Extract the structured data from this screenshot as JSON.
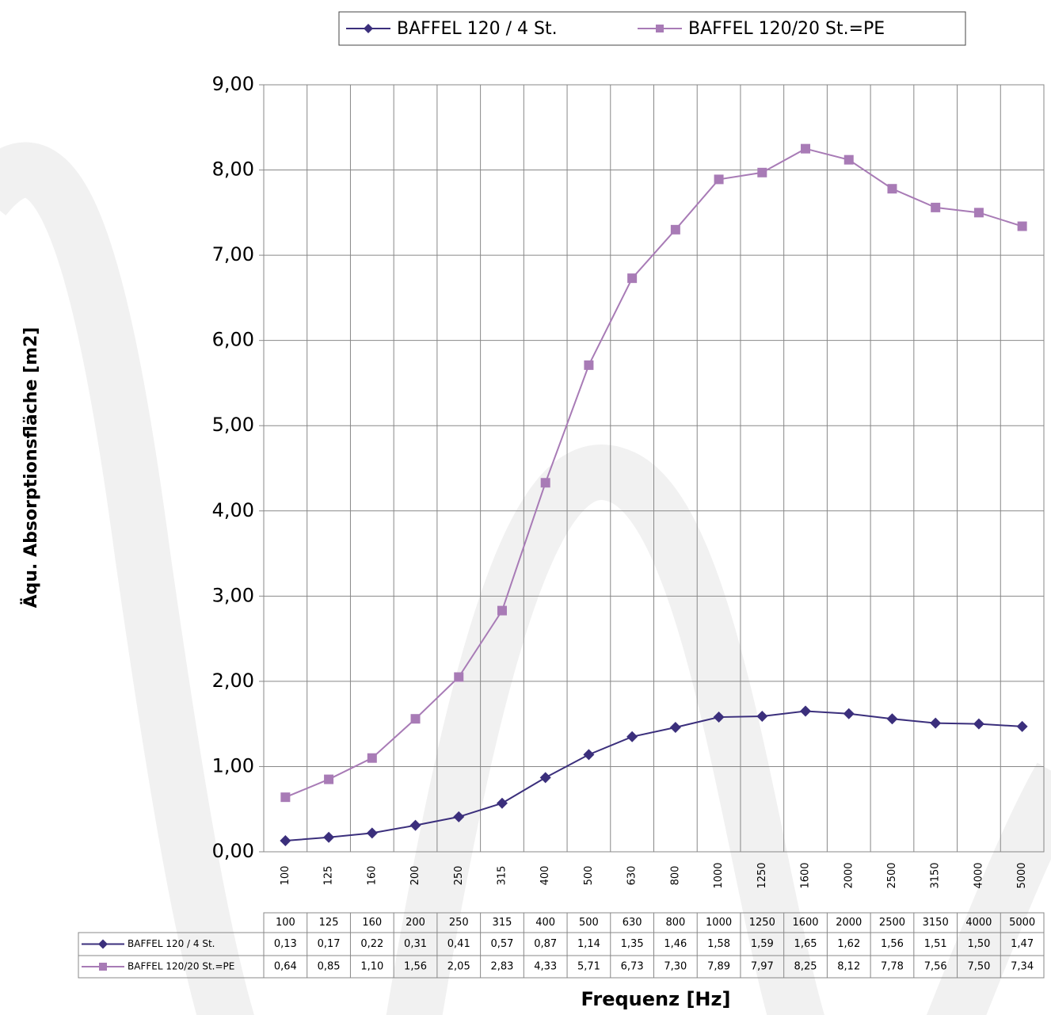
{
  "chart_data": {
    "type": "line",
    "x_label": "Frequenz [Hz]",
    "y_label": "Äqu. Absorptionsfläche [m2]",
    "categories": [
      "100",
      "125",
      "160",
      "200",
      "250",
      "315",
      "400",
      "500",
      "630",
      "800",
      "1000",
      "1250",
      "1600",
      "2000",
      "2500",
      "3150",
      "4000",
      "5000"
    ],
    "series": [
      {
        "name": "BAFFEL 120 / 4 St.",
        "color": "#3b2f7c",
        "marker": "diamond",
        "values": [
          0.13,
          0.17,
          0.22,
          0.31,
          0.41,
          0.57,
          0.87,
          1.14,
          1.35,
          1.46,
          1.58,
          1.59,
          1.65,
          1.62,
          1.56,
          1.51,
          1.5,
          1.47
        ],
        "value_labels": [
          "0,13",
          "0,17",
          "0,22",
          "0,31",
          "0,41",
          "0,57",
          "0,87",
          "1,14",
          "1,35",
          "1,46",
          "1,58",
          "1,59",
          "1,65",
          "1,62",
          "1,56",
          "1,51",
          "1,50",
          "1,47"
        ]
      },
      {
        "name": "BAFFEL 120/20 St.=PE",
        "color": "#a87bb6",
        "marker": "square",
        "values": [
          0.64,
          0.85,
          1.1,
          1.56,
          2.05,
          2.83,
          4.33,
          5.71,
          6.73,
          7.3,
          7.89,
          7.97,
          8.25,
          8.12,
          7.78,
          7.56,
          7.5,
          7.34
        ],
        "value_labels": [
          "0,64",
          "0,85",
          "1,10",
          "1,56",
          "2,05",
          "2,83",
          "4,33",
          "5,71",
          "6,73",
          "7,30",
          "7,89",
          "7,97",
          "8,25",
          "8,12",
          "7,78",
          "7,56",
          "7,50",
          "7,34"
        ]
      }
    ],
    "ylim": [
      0,
      9
    ],
    "yticks": [
      {
        "value": 0,
        "label": "0,00"
      },
      {
        "value": 1,
        "label": "1,00"
      },
      {
        "value": 2,
        "label": "2,00"
      },
      {
        "value": 3,
        "label": "3,00"
      },
      {
        "value": 4,
        "label": "4,00"
      },
      {
        "value": 5,
        "label": "5,00"
      },
      {
        "value": 6,
        "label": "6,00"
      },
      {
        "value": 7,
        "label": "7,00"
      },
      {
        "value": 8,
        "label": "8,00"
      },
      {
        "value": 9,
        "label": "9,00"
      }
    ],
    "grid": true,
    "legend": "top"
  }
}
